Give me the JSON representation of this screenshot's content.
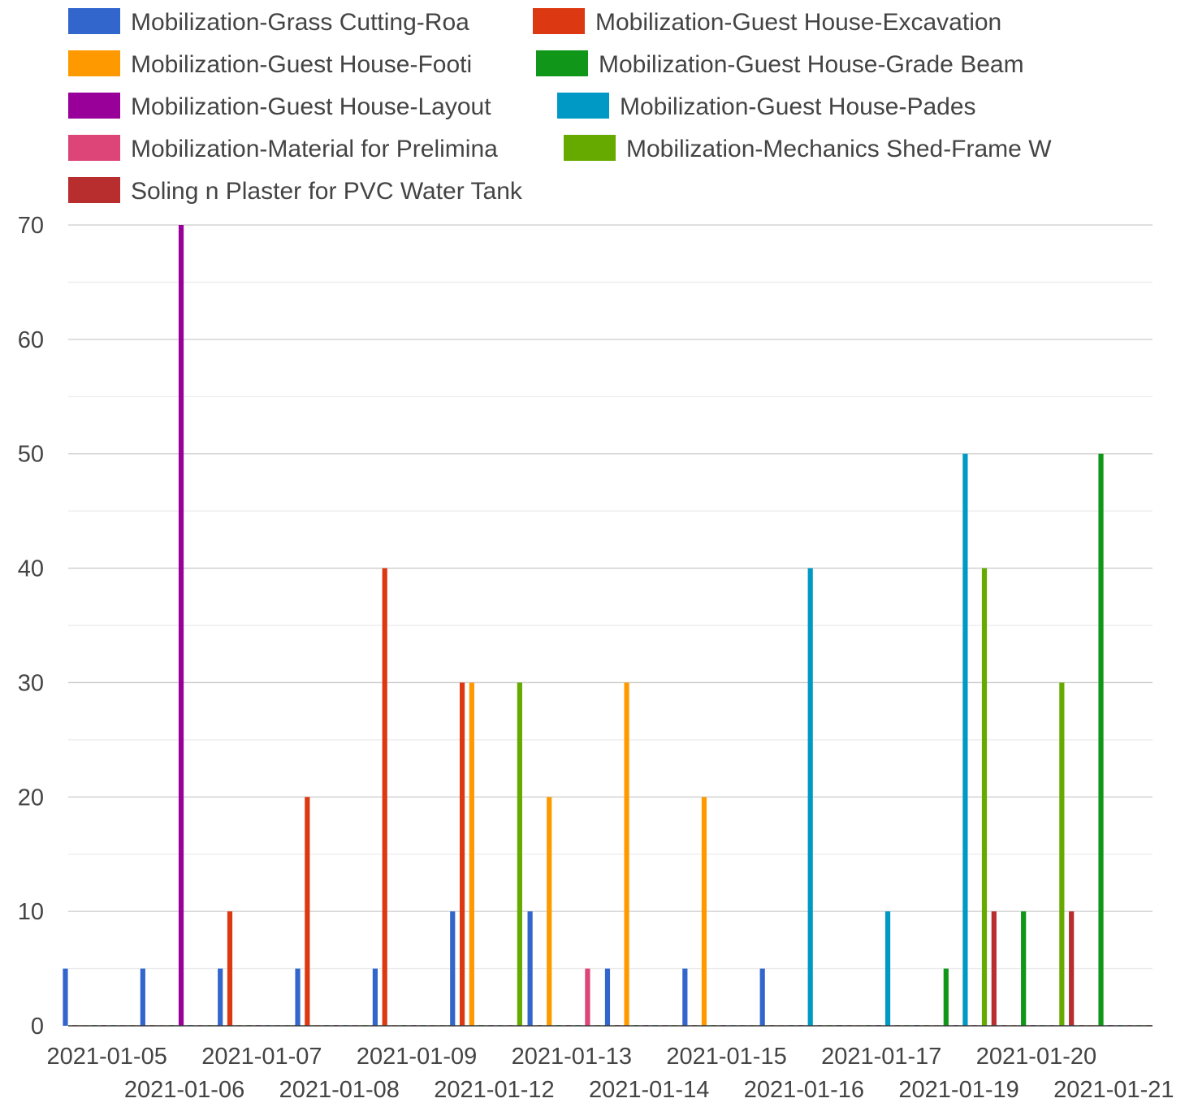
{
  "chart_data": {
    "type": "bar",
    "title": "",
    "xlabel": "",
    "ylabel": "",
    "ylim": [
      0,
      70
    ],
    "yticks": [
      0,
      10,
      20,
      30,
      40,
      50,
      60,
      70
    ],
    "grid": true,
    "legend_position": "top",
    "categories": [
      "2021-01-05",
      "2021-01-06",
      "2021-01-07",
      "2021-01-08",
      "2021-01-09",
      "2021-01-12",
      "2021-01-13",
      "2021-01-14",
      "2021-01-15",
      "2021-01-16",
      "2021-01-17",
      "2021-01-19",
      "2021-01-20",
      "2021-01-21"
    ],
    "series": [
      {
        "name": "Mobilization-Grass Cutting-Roa",
        "color": "#3366cc",
        "values": [
          5,
          5,
          5,
          5,
          5,
          10,
          10,
          5,
          5,
          5,
          0,
          0,
          0,
          0
        ]
      },
      {
        "name": "Mobilization-Guest House-Excavation",
        "color": "#dc3912",
        "values": [
          0,
          0,
          10,
          20,
          40,
          30,
          0,
          0,
          0,
          0,
          0,
          0,
          0,
          0
        ]
      },
      {
        "name": "Mobilization-Guest House-Footi",
        "color": "#ff9900",
        "values": [
          0,
          0,
          0,
          0,
          0,
          30,
          20,
          30,
          20,
          0,
          0,
          0,
          0,
          0
        ]
      },
      {
        "name": "Mobilization-Guest House-Grade Beam",
        "color": "#109618",
        "values": [
          0,
          0,
          0,
          0,
          0,
          0,
          0,
          0,
          0,
          0,
          0,
          5,
          10,
          50
        ]
      },
      {
        "name": "Mobilization-Guest House-Layout",
        "color": "#990099",
        "values": [
          0,
          70,
          0,
          0,
          0,
          0,
          0,
          0,
          0,
          0,
          0,
          0,
          0,
          0
        ]
      },
      {
        "name": "Mobilization-Guest House-Pades",
        "color": "#0099c6",
        "values": [
          0,
          0,
          0,
          0,
          0,
          0,
          0,
          0,
          0,
          40,
          10,
          50,
          0,
          0
        ]
      },
      {
        "name": "Mobilization-Material for Prelimina",
        "color": "#dd4477",
        "values": [
          0,
          0,
          0,
          0,
          0,
          0,
          5,
          0,
          0,
          0,
          0,
          0,
          0,
          0
        ]
      },
      {
        "name": "Mobilization-Mechanics Shed-Frame W",
        "color": "#66aa00",
        "values": [
          0,
          0,
          0,
          0,
          0,
          30,
          0,
          0,
          0,
          0,
          0,
          40,
          30,
          0
        ]
      },
      {
        "name": "Soling n Plaster for PVC Water Tank",
        "color": "#b82e2e",
        "values": [
          0,
          0,
          0,
          0,
          0,
          0,
          0,
          0,
          0,
          0,
          0,
          10,
          10,
          0
        ]
      }
    ]
  }
}
